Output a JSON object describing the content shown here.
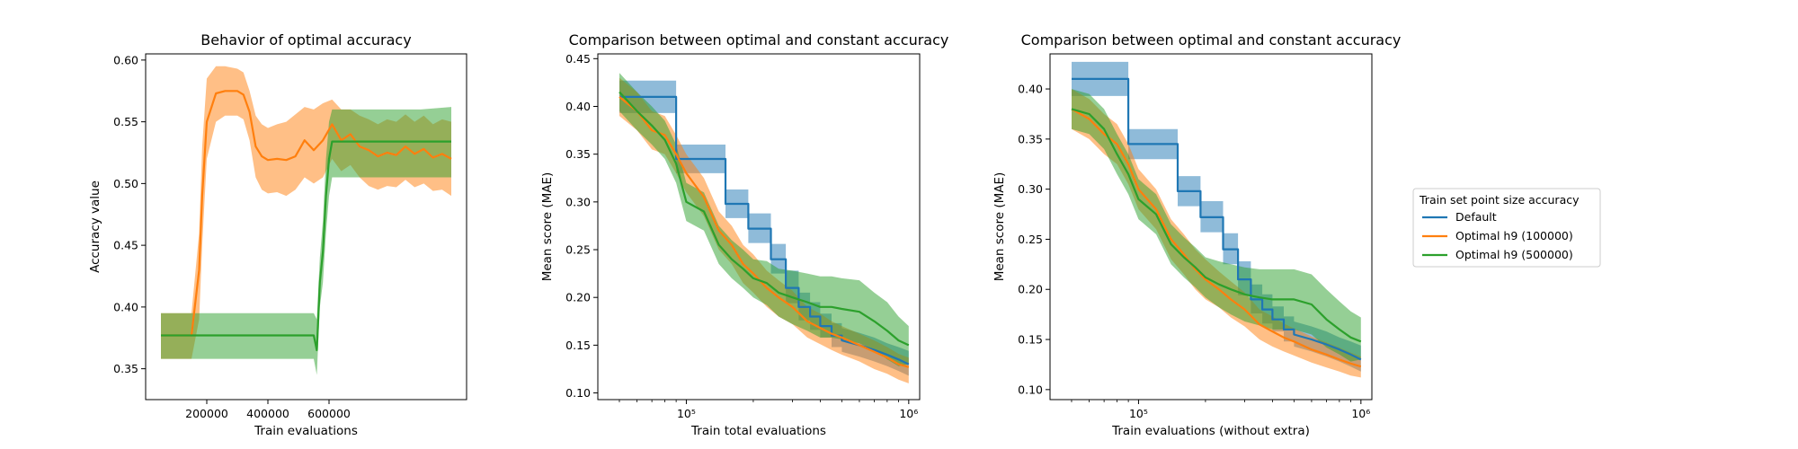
{
  "colors": {
    "blue": "#1f77b4",
    "orange": "#ff7f0e",
    "green": "#2ca02c"
  },
  "legend": {
    "title": "Train set point size accuracy",
    "placement": "right (outside)",
    "items": [
      {
        "label": "Default",
        "color": "#1f77b4"
      },
      {
        "label": "Optimal h9 (100000)",
        "color": "#ff7f0e"
      },
      {
        "label": "Optimal h9 (500000)",
        "color": "#2ca02c"
      }
    ]
  },
  "chart_data": [
    {
      "type": "line",
      "title": "Behavior of optimal accuracy",
      "xlabel": "Train evaluations",
      "ylabel": "Accuracy value",
      "xlim": [
        0,
        1050000
      ],
      "ylim": [
        0.325,
        0.605
      ],
      "xscale": "linear",
      "xticks": [
        200000,
        400000,
        600000
      ],
      "xtick_labels": [
        "200000",
        "400000",
        "600000"
      ],
      "yticks": [
        0.35,
        0.4,
        0.45,
        0.5,
        0.55,
        0.6
      ],
      "ytick_labels": [
        "0.35",
        "0.40",
        "0.45",
        "0.50",
        "0.55",
        "0.60"
      ],
      "grid": false,
      "series": [
        {
          "color": "#ff7f0e",
          "x": [
            50000,
            100000,
            130000,
            150000,
            175000,
            185000,
            200000,
            230000,
            260000,
            300000,
            320000,
            340000,
            360000,
            380000,
            400000,
            430000,
            460000,
            490000,
            520000,
            550000,
            580000,
            610000,
            640000,
            670000,
            700000,
            730000,
            760000,
            790000,
            820000,
            850000,
            880000,
            910000,
            940000,
            970000,
            1000000
          ],
          "y": [
            0.377,
            0.377,
            0.377,
            0.377,
            0.43,
            0.49,
            0.55,
            0.573,
            0.575,
            0.575,
            0.572,
            0.558,
            0.53,
            0.522,
            0.519,
            0.52,
            0.519,
            0.522,
            0.535,
            0.527,
            0.535,
            0.548,
            0.535,
            0.54,
            0.53,
            0.527,
            0.522,
            0.525,
            0.523,
            0.53,
            0.524,
            0.528,
            0.521,
            0.524,
            0.52
          ],
          "upper": [
            0.395,
            0.395,
            0.395,
            0.395,
            0.46,
            0.53,
            0.585,
            0.595,
            0.595,
            0.593,
            0.59,
            0.575,
            0.555,
            0.548,
            0.545,
            0.548,
            0.55,
            0.556,
            0.562,
            0.56,
            0.565,
            0.568,
            0.56,
            0.56,
            0.555,
            0.552,
            0.548,
            0.552,
            0.55,
            0.556,
            0.55,
            0.555,
            0.548,
            0.552,
            0.55
          ],
          "lower": [
            0.358,
            0.358,
            0.358,
            0.358,
            0.39,
            0.45,
            0.52,
            0.55,
            0.555,
            0.555,
            0.552,
            0.535,
            0.505,
            0.495,
            0.492,
            0.493,
            0.49,
            0.495,
            0.505,
            0.5,
            0.505,
            0.52,
            0.51,
            0.515,
            0.505,
            0.498,
            0.495,
            0.498,
            0.497,
            0.503,
            0.497,
            0.5,
            0.494,
            0.495,
            0.49
          ]
        },
        {
          "color": "#2ca02c",
          "x": [
            50000,
            100000,
            200000,
            300000,
            400000,
            500000,
            550000,
            560000,
            570000,
            580000,
            590000,
            600000,
            610000,
            620000,
            630000,
            650000,
            700000,
            800000,
            900000,
            1000000
          ],
          "y": [
            0.377,
            0.377,
            0.377,
            0.377,
            0.377,
            0.377,
            0.377,
            0.365,
            0.42,
            0.445,
            0.49,
            0.52,
            0.534,
            0.534,
            0.534,
            0.534,
            0.534,
            0.534,
            0.534,
            0.534
          ],
          "upper": [
            0.395,
            0.395,
            0.395,
            0.395,
            0.395,
            0.395,
            0.395,
            0.39,
            0.44,
            0.47,
            0.52,
            0.55,
            0.56,
            0.56,
            0.56,
            0.56,
            0.56,
            0.56,
            0.56,
            0.562
          ],
          "lower": [
            0.358,
            0.358,
            0.358,
            0.358,
            0.358,
            0.358,
            0.358,
            0.345,
            0.4,
            0.42,
            0.46,
            0.49,
            0.505,
            0.505,
            0.505,
            0.505,
            0.505,
            0.505,
            0.505,
            0.505
          ]
        }
      ]
    },
    {
      "type": "line",
      "title": "Comparison between optimal and constant accuracy",
      "xlabel": "Train total evaluations",
      "ylabel": "Mean score (MAE)",
      "xscale": "log",
      "xlim": [
        40000,
        1120000
      ],
      "ylim": [
        0.093,
        0.455
      ],
      "xticks": [
        100000,
        1000000
      ],
      "xtick_labels": [
        "10⁵",
        "10⁶"
      ],
      "yticks": [
        0.1,
        0.15,
        0.2,
        0.25,
        0.3,
        0.35,
        0.4,
        0.45
      ],
      "ytick_labels": [
        "0.10",
        "0.15",
        "0.20",
        "0.25",
        "0.30",
        "0.35",
        "0.40",
        "0.45"
      ],
      "grid": false,
      "series": [
        {
          "color": "#1f77b4",
          "x": [
            50000,
            90000,
            90000,
            120000,
            120000,
            150000,
            150000,
            190000,
            190000,
            210000,
            210000,
            240000,
            240000,
            280000,
            280000,
            320000,
            320000,
            360000,
            360000,
            400000,
            400000,
            450000,
            450000,
            500000,
            500000,
            600000,
            700000,
            800000,
            900000,
            1000000
          ],
          "y": [
            0.41,
            0.41,
            0.345,
            0.345,
            0.345,
            0.345,
            0.298,
            0.298,
            0.272,
            0.272,
            0.272,
            0.272,
            0.24,
            0.24,
            0.21,
            0.21,
            0.19,
            0.19,
            0.18,
            0.18,
            0.17,
            0.17,
            0.16,
            0.16,
            0.155,
            0.15,
            0.145,
            0.14,
            0.135,
            0.13
          ],
          "upper": [
            0.427,
            0.427,
            0.36,
            0.36,
            0.36,
            0.36,
            0.313,
            0.313,
            0.288,
            0.288,
            0.288,
            0.288,
            0.256,
            0.256,
            0.228,
            0.228,
            0.205,
            0.205,
            0.195,
            0.195,
            0.183,
            0.183,
            0.173,
            0.173,
            0.168,
            0.163,
            0.158,
            0.152,
            0.148,
            0.144
          ],
          "lower": [
            0.393,
            0.393,
            0.33,
            0.33,
            0.33,
            0.33,
            0.283,
            0.283,
            0.257,
            0.257,
            0.257,
            0.257,
            0.225,
            0.225,
            0.194,
            0.194,
            0.176,
            0.176,
            0.166,
            0.166,
            0.158,
            0.158,
            0.148,
            0.148,
            0.143,
            0.138,
            0.133,
            0.128,
            0.123,
            0.118
          ]
        },
        {
          "color": "#ff7f0e",
          "x": [
            50000,
            60000,
            70000,
            80000,
            90000,
            100000,
            120000,
            140000,
            160000,
            180000,
            200000,
            230000,
            260000,
            300000,
            350000,
            400000,
            450000,
            500000,
            600000,
            700000,
            800000,
            900000,
            1000000
          ],
          "y": [
            0.41,
            0.395,
            0.375,
            0.37,
            0.35,
            0.33,
            0.305,
            0.27,
            0.255,
            0.235,
            0.225,
            0.21,
            0.2,
            0.19,
            0.175,
            0.168,
            0.162,
            0.158,
            0.15,
            0.143,
            0.137,
            0.13,
            0.127
          ],
          "upper": [
            0.43,
            0.415,
            0.395,
            0.39,
            0.37,
            0.35,
            0.325,
            0.29,
            0.275,
            0.255,
            0.245,
            0.228,
            0.218,
            0.207,
            0.19,
            0.183,
            0.175,
            0.17,
            0.162,
            0.155,
            0.148,
            0.141,
            0.137
          ],
          "lower": [
            0.39,
            0.375,
            0.355,
            0.35,
            0.33,
            0.31,
            0.285,
            0.25,
            0.235,
            0.215,
            0.205,
            0.19,
            0.18,
            0.172,
            0.158,
            0.151,
            0.145,
            0.14,
            0.133,
            0.125,
            0.12,
            0.114,
            0.11
          ]
        },
        {
          "color": "#2ca02c",
          "x": [
            50000,
            60000,
            70000,
            80000,
            90000,
            100000,
            120000,
            140000,
            160000,
            180000,
            200000,
            230000,
            260000,
            300000,
            350000,
            400000,
            450000,
            500000,
            600000,
            700000,
            800000,
            900000,
            1000000
          ],
          "y": [
            0.415,
            0.395,
            0.38,
            0.365,
            0.34,
            0.3,
            0.29,
            0.255,
            0.24,
            0.23,
            0.22,
            0.215,
            0.205,
            0.2,
            0.195,
            0.19,
            0.19,
            0.188,
            0.185,
            0.175,
            0.165,
            0.155,
            0.15
          ],
          "upper": [
            0.435,
            0.415,
            0.4,
            0.385,
            0.36,
            0.32,
            0.31,
            0.275,
            0.26,
            0.25,
            0.24,
            0.238,
            0.23,
            0.228,
            0.225,
            0.222,
            0.222,
            0.22,
            0.218,
            0.205,
            0.195,
            0.18,
            0.17
          ],
          "lower": [
            0.395,
            0.375,
            0.36,
            0.345,
            0.32,
            0.28,
            0.27,
            0.235,
            0.22,
            0.21,
            0.2,
            0.192,
            0.18,
            0.172,
            0.165,
            0.158,
            0.158,
            0.156,
            0.152,
            0.145,
            0.135,
            0.128,
            0.13
          ]
        }
      ]
    },
    {
      "type": "line",
      "title": "Comparison between optimal and constant accuracy",
      "xlabel": "Train evaluations (without extra)",
      "ylabel": "Mean score (MAE)",
      "xscale": "log",
      "xlim": [
        40000,
        1120000
      ],
      "ylim": [
        0.09,
        0.435
      ],
      "xticks": [
        100000,
        1000000
      ],
      "xtick_labels": [
        "10⁵",
        "10⁶"
      ],
      "yticks": [
        0.1,
        0.15,
        0.2,
        0.25,
        0.3,
        0.35,
        0.4
      ],
      "ytick_labels": [
        "0.10",
        "0.15",
        "0.20",
        "0.25",
        "0.30",
        "0.35",
        "0.40"
      ],
      "grid": false,
      "series": [
        {
          "color": "#1f77b4",
          "x": [
            50000,
            90000,
            90000,
            120000,
            120000,
            150000,
            150000,
            190000,
            190000,
            210000,
            210000,
            240000,
            240000,
            280000,
            280000,
            320000,
            320000,
            360000,
            360000,
            400000,
            400000,
            450000,
            450000,
            500000,
            500000,
            600000,
            700000,
            800000,
            900000,
            1000000
          ],
          "y": [
            0.41,
            0.41,
            0.345,
            0.345,
            0.345,
            0.345,
            0.298,
            0.298,
            0.272,
            0.272,
            0.272,
            0.272,
            0.24,
            0.24,
            0.21,
            0.21,
            0.19,
            0.19,
            0.18,
            0.18,
            0.17,
            0.17,
            0.16,
            0.16,
            0.155,
            0.15,
            0.145,
            0.14,
            0.135,
            0.13
          ],
          "upper": [
            0.427,
            0.427,
            0.36,
            0.36,
            0.36,
            0.36,
            0.313,
            0.313,
            0.288,
            0.288,
            0.288,
            0.288,
            0.256,
            0.256,
            0.228,
            0.228,
            0.205,
            0.205,
            0.195,
            0.195,
            0.183,
            0.183,
            0.173,
            0.173,
            0.168,
            0.163,
            0.158,
            0.152,
            0.148,
            0.144
          ],
          "lower": [
            0.393,
            0.393,
            0.33,
            0.33,
            0.33,
            0.33,
            0.283,
            0.283,
            0.257,
            0.257,
            0.257,
            0.257,
            0.225,
            0.225,
            0.194,
            0.194,
            0.176,
            0.176,
            0.166,
            0.166,
            0.158,
            0.158,
            0.148,
            0.148,
            0.143,
            0.138,
            0.133,
            0.128,
            0.123,
            0.118
          ]
        },
        {
          "color": "#ff7f0e",
          "x": [
            50000,
            60000,
            70000,
            80000,
            90000,
            100000,
            120000,
            140000,
            160000,
            180000,
            200000,
            230000,
            260000,
            300000,
            350000,
            400000,
            450000,
            500000,
            600000,
            700000,
            800000,
            900000,
            1000000
          ],
          "y": [
            0.38,
            0.37,
            0.355,
            0.345,
            0.325,
            0.3,
            0.28,
            0.25,
            0.235,
            0.22,
            0.21,
            0.2,
            0.19,
            0.18,
            0.165,
            0.158,
            0.152,
            0.148,
            0.14,
            0.135,
            0.13,
            0.126,
            0.123
          ],
          "upper": [
            0.4,
            0.39,
            0.375,
            0.365,
            0.345,
            0.32,
            0.3,
            0.27,
            0.255,
            0.24,
            0.23,
            0.218,
            0.208,
            0.197,
            0.18,
            0.173,
            0.166,
            0.161,
            0.153,
            0.147,
            0.142,
            0.137,
            0.133
          ],
          "lower": [
            0.36,
            0.35,
            0.335,
            0.325,
            0.305,
            0.28,
            0.26,
            0.23,
            0.215,
            0.2,
            0.19,
            0.182,
            0.172,
            0.163,
            0.15,
            0.143,
            0.138,
            0.134,
            0.127,
            0.122,
            0.118,
            0.114,
            0.112
          ]
        },
        {
          "color": "#2ca02c",
          "x": [
            50000,
            60000,
            70000,
            80000,
            90000,
            100000,
            120000,
            140000,
            160000,
            180000,
            200000,
            230000,
            260000,
            300000,
            350000,
            400000,
            450000,
            500000,
            600000,
            700000,
            800000,
            900000,
            1000000
          ],
          "y": [
            0.38,
            0.375,
            0.36,
            0.335,
            0.315,
            0.29,
            0.275,
            0.245,
            0.232,
            0.222,
            0.212,
            0.205,
            0.2,
            0.195,
            0.192,
            0.19,
            0.19,
            0.19,
            0.185,
            0.17,
            0.16,
            0.152,
            0.148
          ],
          "upper": [
            0.4,
            0.395,
            0.38,
            0.355,
            0.335,
            0.31,
            0.295,
            0.265,
            0.252,
            0.242,
            0.232,
            0.228,
            0.225,
            0.222,
            0.22,
            0.22,
            0.22,
            0.22,
            0.215,
            0.2,
            0.188,
            0.178,
            0.172
          ],
          "lower": [
            0.36,
            0.355,
            0.34,
            0.315,
            0.295,
            0.27,
            0.255,
            0.225,
            0.212,
            0.202,
            0.192,
            0.182,
            0.175,
            0.168,
            0.164,
            0.16,
            0.16,
            0.16,
            0.155,
            0.142,
            0.135,
            0.128,
            0.13
          ]
        }
      ]
    }
  ]
}
